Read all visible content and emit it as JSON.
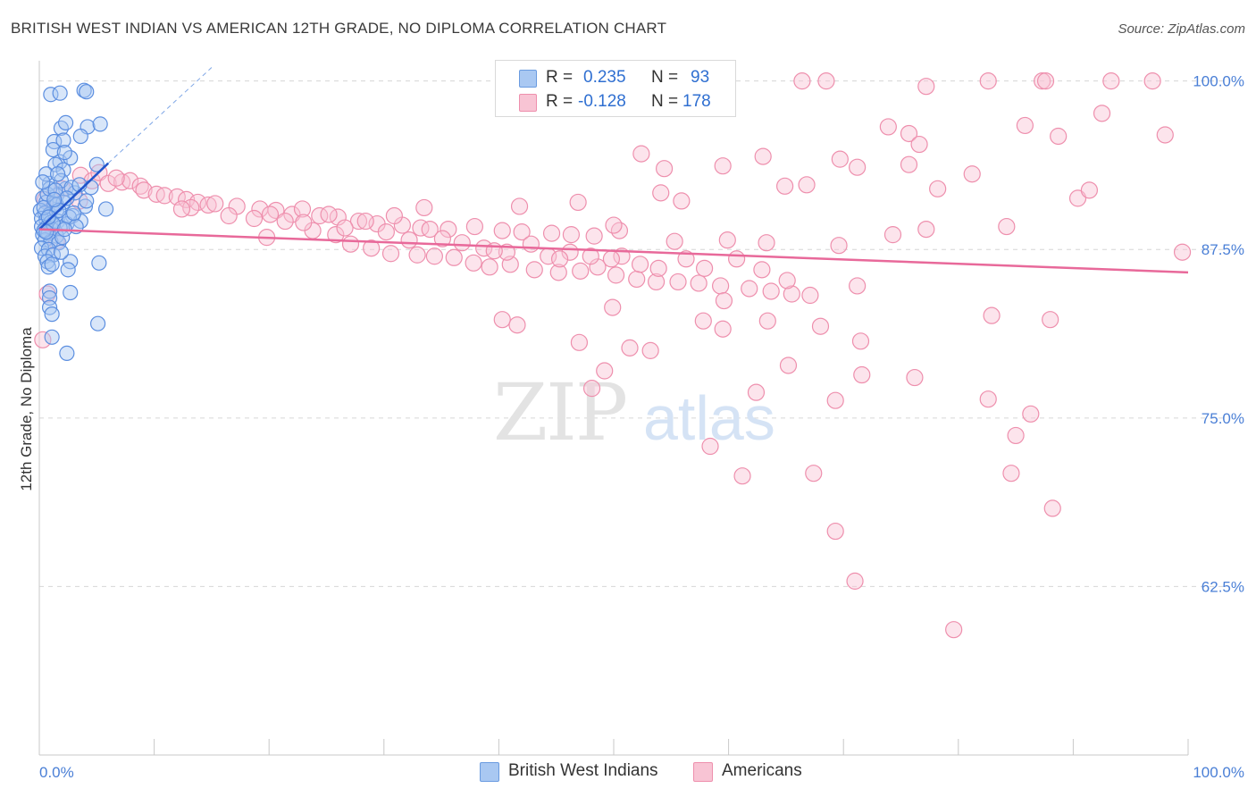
{
  "header": {
    "title": "BRITISH WEST INDIAN VS AMERICAN 12TH GRADE, NO DIPLOMA CORRELATION CHART",
    "source": "Source: ZipAtlas.com"
  },
  "watermark": {
    "zip": "ZIP",
    "atlas": "atlas"
  },
  "stats": {
    "r_label": "R =",
    "n_label": "N =",
    "rows": [
      {
        "r": "0.235",
        "n": "93",
        "color": "#a9c8f2",
        "border": "#6a9be0"
      },
      {
        "r": "-0.128",
        "n": "178",
        "color": "#f8c4d4",
        "border": "#ee8fad"
      }
    ]
  },
  "legend": {
    "items": [
      {
        "label": "British West Indians",
        "color": "#a9c8f2",
        "border": "#6a9be0"
      },
      {
        "label": "Americans",
        "color": "#f8c4d4",
        "border": "#ee8fad"
      }
    ]
  },
  "chart_data": {
    "type": "scatter",
    "title": "BRITISH WEST INDIAN VS AMERICAN 12TH GRADE, NO DIPLOMA CORRELATION CHART",
    "xlabel": "",
    "ylabel": "12th Grade, No Diploma",
    "xlim": [
      0,
      100
    ],
    "ylim": [
      50,
      101.5
    ],
    "x_tick_labels": [
      "0.0%",
      "100.0%"
    ],
    "y_ticks": [
      62.5,
      75.0,
      87.5,
      100.0
    ],
    "y_tick_labels": [
      "62.5%",
      "75.0%",
      "87.5%",
      "100.0%"
    ],
    "grid": "horizontal dashed",
    "legend_placement": "bottom-center",
    "colors": {
      "blue_point": "#5b8ee0",
      "blue_line": "#2255cc",
      "pink_point": "#ee8fad",
      "pink_line": "#e8699a"
    },
    "series": [
      {
        "name": "British West Indians",
        "trend": {
          "x": [
            0,
            6
          ],
          "y": [
            89.0,
            93.9
          ],
          "extended_to": {
            "x": 15,
            "y": 101.0
          }
        },
        "points": [
          [
            1.0,
            99.0
          ],
          [
            1.8,
            99.1
          ],
          [
            3.9,
            99.3
          ],
          [
            4.1,
            99.2
          ],
          [
            1.9,
            96.5
          ],
          [
            2.3,
            96.9
          ],
          [
            4.2,
            96.6
          ],
          [
            5.3,
            96.8
          ],
          [
            1.3,
            95.5
          ],
          [
            2.1,
            95.6
          ],
          [
            3.6,
            95.9
          ],
          [
            1.2,
            94.9
          ],
          [
            1.8,
            94.0
          ],
          [
            2.7,
            94.3
          ],
          [
            1.4,
            93.8
          ],
          [
            2.1,
            93.4
          ],
          [
            0.9,
            92.4
          ],
          [
            2.3,
            92.0
          ],
          [
            4.5,
            92.1
          ],
          [
            1.5,
            91.5
          ],
          [
            0.3,
            91.3
          ],
          [
            0.6,
            91.0
          ],
          [
            1.3,
            90.9
          ],
          [
            2.1,
            91.0
          ],
          [
            4.0,
            90.7
          ],
          [
            5.8,
            90.5
          ],
          [
            0.1,
            90.4
          ],
          [
            0.5,
            90.2
          ],
          [
            0.9,
            90.1
          ],
          [
            1.5,
            90.3
          ],
          [
            2.9,
            90.0
          ],
          [
            0.2,
            89.8
          ],
          [
            0.6,
            89.7
          ],
          [
            1.0,
            89.5
          ],
          [
            1.6,
            89.6
          ],
          [
            2.4,
            89.4
          ],
          [
            3.6,
            89.6
          ],
          [
            0.2,
            89.2
          ],
          [
            0.6,
            89.1
          ],
          [
            1.1,
            89.0
          ],
          [
            1.8,
            89.1
          ],
          [
            0.3,
            88.6
          ],
          [
            0.8,
            88.7
          ],
          [
            1.5,
            88.5
          ],
          [
            0.5,
            88.2
          ],
          [
            1.0,
            88.1
          ],
          [
            1.7,
            88.0
          ],
          [
            0.2,
            87.6
          ],
          [
            0.8,
            87.5
          ],
          [
            0.5,
            87.0
          ],
          [
            1.2,
            87.1
          ],
          [
            0.7,
            86.6
          ],
          [
            2.7,
            86.6
          ],
          [
            5.2,
            86.5
          ],
          [
            0.8,
            86.2
          ],
          [
            2.5,
            86.0
          ],
          [
            0.9,
            84.4
          ],
          [
            2.7,
            84.3
          ],
          [
            0.9,
            83.9
          ],
          [
            0.9,
            83.2
          ],
          [
            1.1,
            82.7
          ],
          [
            5.1,
            82.0
          ],
          [
            1.1,
            81.0
          ],
          [
            2.4,
            79.8
          ],
          [
            1.5,
            90.8
          ],
          [
            2.6,
            89.9
          ],
          [
            3.2,
            89.2
          ],
          [
            0.4,
            88.9
          ],
          [
            1.9,
            92.6
          ],
          [
            3.1,
            91.7
          ],
          [
            0.7,
            91.6
          ],
          [
            2.0,
            88.4
          ],
          [
            1.2,
            89.4
          ],
          [
            0.4,
            90.6
          ],
          [
            1.7,
            90.4
          ],
          [
            2.8,
            92.1
          ],
          [
            0.9,
            92.0
          ],
          [
            3.5,
            92.3
          ],
          [
            5.0,
            93.8
          ],
          [
            2.2,
            94.7
          ],
          [
            0.6,
            93.1
          ],
          [
            1.4,
            91.9
          ],
          [
            2.4,
            91.3
          ],
          [
            4.1,
            91.1
          ],
          [
            0.3,
            92.5
          ],
          [
            1.1,
            86.4
          ],
          [
            0.6,
            88.8
          ],
          [
            1.9,
            87.3
          ],
          [
            3.0,
            90.2
          ],
          [
            0.8,
            89.9
          ],
          [
            1.3,
            91.2
          ],
          [
            2.2,
            89.0
          ],
          [
            1.6,
            93.1
          ]
        ]
      },
      {
        "name": "Americans",
        "trend": {
          "x": [
            0,
            100
          ],
          "y": [
            89.0,
            85.8
          ]
        },
        "points": [
          [
            66.4,
            100.0
          ],
          [
            68.5,
            100.0
          ],
          [
            77.2,
            99.6
          ],
          [
            82.6,
            100.0
          ],
          [
            87.3,
            100.0
          ],
          [
            87.6,
            100.0
          ],
          [
            93.3,
            100.0
          ],
          [
            96.9,
            100.0
          ],
          [
            73.9,
            96.6
          ],
          [
            75.7,
            96.1
          ],
          [
            85.8,
            96.7
          ],
          [
            88.7,
            95.9
          ],
          [
            98.0,
            96.0
          ],
          [
            92.5,
            97.6
          ],
          [
            76.6,
            95.3
          ],
          [
            52.4,
            94.6
          ],
          [
            63.0,
            94.4
          ],
          [
            69.7,
            94.2
          ],
          [
            71.2,
            93.6
          ],
          [
            75.7,
            93.8
          ],
          [
            54.4,
            93.5
          ],
          [
            59.5,
            93.7
          ],
          [
            81.2,
            93.1
          ],
          [
            64.9,
            92.2
          ],
          [
            66.8,
            92.3
          ],
          [
            78.2,
            92.0
          ],
          [
            54.1,
            91.7
          ],
          [
            55.9,
            91.1
          ],
          [
            90.4,
            91.3
          ],
          [
            91.4,
            91.9
          ],
          [
            46.9,
            91.0
          ],
          [
            41.8,
            90.7
          ],
          [
            3.6,
            93.0
          ],
          [
            4.6,
            92.6
          ],
          [
            5.2,
            93.2
          ],
          [
            6.0,
            92.4
          ],
          [
            7.2,
            92.5
          ],
          [
            7.9,
            92.6
          ],
          [
            8.8,
            92.2
          ],
          [
            9.1,
            91.9
          ],
          [
            10.2,
            91.6
          ],
          [
            10.9,
            91.5
          ],
          [
            12.0,
            91.4
          ],
          [
            12.8,
            91.2
          ],
          [
            13.8,
            91.0
          ],
          [
            14.7,
            90.8
          ],
          [
            15.3,
            90.9
          ],
          [
            17.2,
            90.7
          ],
          [
            19.2,
            90.5
          ],
          [
            20.6,
            90.4
          ],
          [
            22.0,
            90.1
          ],
          [
            24.4,
            90.0
          ],
          [
            26.0,
            89.9
          ],
          [
            27.8,
            89.6
          ],
          [
            29.4,
            89.4
          ],
          [
            31.6,
            89.3
          ],
          [
            33.2,
            89.1
          ],
          [
            35.6,
            89.0
          ],
          [
            37.9,
            89.2
          ],
          [
            40.3,
            88.9
          ],
          [
            42.0,
            88.8
          ],
          [
            44.6,
            88.7
          ],
          [
            46.3,
            88.6
          ],
          [
            48.3,
            88.5
          ],
          [
            50.5,
            88.9
          ],
          [
            50.0,
            89.3
          ],
          [
            55.3,
            88.1
          ],
          [
            59.9,
            88.2
          ],
          [
            63.3,
            88.0
          ],
          [
            69.6,
            87.8
          ],
          [
            74.3,
            88.6
          ],
          [
            77.2,
            89.0
          ],
          [
            84.2,
            89.2
          ],
          [
            99.5,
            87.3
          ],
          [
            13.2,
            90.6
          ],
          [
            16.5,
            90.0
          ],
          [
            18.7,
            89.8
          ],
          [
            21.4,
            89.6
          ],
          [
            23.8,
            88.9
          ],
          [
            25.8,
            88.6
          ],
          [
            27.1,
            87.9
          ],
          [
            28.9,
            87.6
          ],
          [
            30.6,
            87.2
          ],
          [
            32.9,
            87.1
          ],
          [
            34.4,
            87.0
          ],
          [
            36.1,
            86.9
          ],
          [
            37.8,
            86.5
          ],
          [
            39.2,
            86.2
          ],
          [
            41.0,
            86.4
          ],
          [
            43.1,
            86.0
          ],
          [
            45.2,
            85.8
          ],
          [
            47.1,
            85.9
          ],
          [
            48.6,
            86.2
          ],
          [
            50.2,
            85.6
          ],
          [
            52.0,
            85.3
          ],
          [
            53.7,
            85.1
          ],
          [
            55.6,
            85.1
          ],
          [
            57.4,
            85.0
          ],
          [
            59.3,
            84.8
          ],
          [
            61.8,
            84.6
          ],
          [
            63.7,
            84.4
          ],
          [
            65.5,
            84.2
          ],
          [
            67.1,
            84.1
          ],
          [
            71.2,
            84.8
          ],
          [
            57.9,
            86.1
          ],
          [
            56.3,
            86.8
          ],
          [
            60.7,
            86.8
          ],
          [
            62.9,
            86.0
          ],
          [
            65.1,
            85.2
          ],
          [
            12.4,
            90.5
          ],
          [
            20.1,
            90.1
          ],
          [
            22.9,
            90.5
          ],
          [
            25.2,
            90.1
          ],
          [
            28.4,
            89.6
          ],
          [
            30.2,
            88.8
          ],
          [
            32.2,
            88.2
          ],
          [
            34.0,
            89.0
          ],
          [
            36.8,
            88.0
          ],
          [
            38.7,
            87.6
          ],
          [
            40.7,
            87.3
          ],
          [
            42.8,
            87.9
          ],
          [
            44.3,
            87.0
          ],
          [
            46.2,
            87.3
          ],
          [
            48.0,
            87.0
          ],
          [
            50.7,
            87.0
          ],
          [
            52.3,
            86.4
          ],
          [
            53.9,
            86.1
          ],
          [
            45.3,
            86.8
          ],
          [
            49.8,
            86.8
          ],
          [
            39.6,
            87.4
          ],
          [
            35.1,
            88.3
          ],
          [
            30.9,
            90.0
          ],
          [
            33.5,
            90.6
          ],
          [
            23.0,
            89.5
          ],
          [
            26.6,
            89.1
          ],
          [
            19.8,
            88.4
          ],
          [
            57.8,
            82.2
          ],
          [
            49.9,
            83.2
          ],
          [
            59.6,
            83.7
          ],
          [
            63.4,
            82.2
          ],
          [
            59.5,
            81.6
          ],
          [
            82.9,
            82.6
          ],
          [
            71.5,
            80.7
          ],
          [
            68.0,
            81.8
          ],
          [
            88.0,
            82.3
          ],
          [
            40.3,
            82.3
          ],
          [
            41.6,
            81.9
          ],
          [
            47.0,
            80.6
          ],
          [
            51.4,
            80.2
          ],
          [
            53.2,
            80.0
          ],
          [
            65.2,
            78.9
          ],
          [
            71.6,
            78.2
          ],
          [
            49.2,
            78.5
          ],
          [
            48.1,
            77.2
          ],
          [
            62.4,
            76.9
          ],
          [
            69.3,
            76.3
          ],
          [
            82.6,
            76.4
          ],
          [
            86.3,
            75.3
          ],
          [
            76.2,
            78.0
          ],
          [
            85.0,
            73.7
          ],
          [
            58.4,
            72.9
          ],
          [
            61.2,
            70.7
          ],
          [
            67.4,
            70.9
          ],
          [
            84.6,
            70.9
          ],
          [
            88.2,
            68.3
          ],
          [
            69.3,
            66.6
          ],
          [
            71.0,
            62.9
          ],
          [
            79.6,
            59.3
          ],
          [
            0.5,
            91.2
          ],
          [
            1.3,
            90.8
          ],
          [
            2.0,
            92.0
          ],
          [
            3.5,
            91.1
          ],
          [
            6.7,
            92.8
          ],
          [
            1.5,
            88.1
          ],
          [
            0.7,
            84.2
          ],
          [
            0.3,
            80.8
          ]
        ]
      }
    ]
  }
}
